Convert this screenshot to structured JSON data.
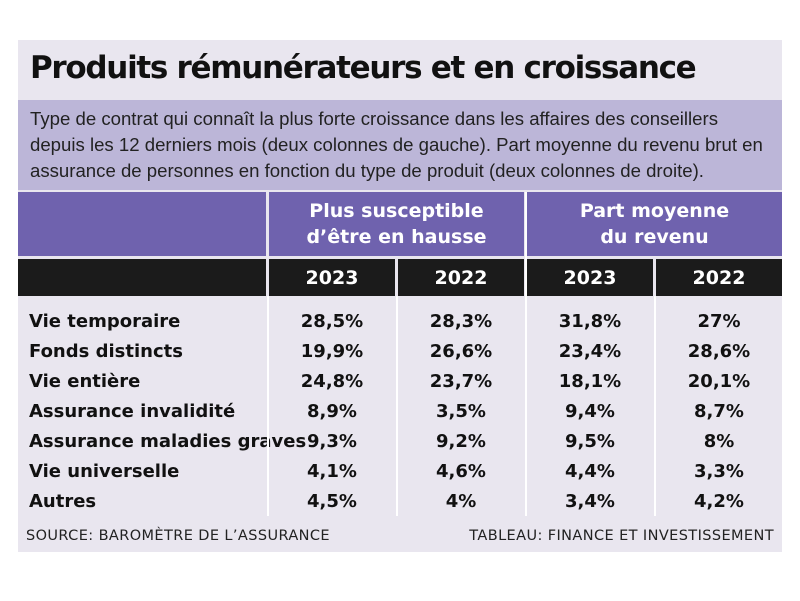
{
  "colors": {
    "card": "#e9e6ef",
    "subtitle_band": "#bcb6d8",
    "header": "#6f62ae",
    "year_bar": "#1b1b1b"
  },
  "chart_data": {
    "type": "table",
    "title": "Produits rémunérateurs et en croissance",
    "subtitle": "Type de contrat qui connaît la plus forte croissance dans les affaires des conseillers depuis les 12 derniers mois (deux colonnes de gauche). Part moyenne du revenu brut en assurance de personnes en fonction du type de produit (deux colonnes de droite).",
    "groups": [
      {
        "label": "Plus susceptible d’être en hausse",
        "years": [
          "2023",
          "2022"
        ]
      },
      {
        "label": "Part moyenne du revenu",
        "years": [
          "2023",
          "2022"
        ]
      }
    ],
    "rows": [
      {
        "label": "Vie temporaire",
        "values": [
          "28,5%",
          "28,3%",
          "31,8%",
          "27%"
        ]
      },
      {
        "label": "Fonds distincts",
        "values": [
          "19,9%",
          "26,6%",
          "23,4%",
          "28,6%"
        ]
      },
      {
        "label": "Vie entière",
        "values": [
          "24,8%",
          "23,7%",
          "18,1%",
          "20,1%"
        ]
      },
      {
        "label": "Assurance invalidité",
        "values": [
          "8,9%",
          "3,5%",
          "9,4%",
          "8,7%"
        ]
      },
      {
        "label": "Assurance maladies graves",
        "values": [
          "9,3%",
          "9,2%",
          "9,5%",
          "8%"
        ]
      },
      {
        "label": "Vie universelle",
        "values": [
          "4,1%",
          "4,6%",
          "4,4%",
          "3,3%"
        ]
      },
      {
        "label": "Autres",
        "values": [
          "4,5%",
          "4%",
          "3,4%",
          "4,2%"
        ]
      }
    ]
  },
  "footer": {
    "source": "SOURCE: BAROMÈTRE DE L’ASSURANCE",
    "credit": "TABLEAU: FINANCE ET INVESTISSEMENT"
  }
}
